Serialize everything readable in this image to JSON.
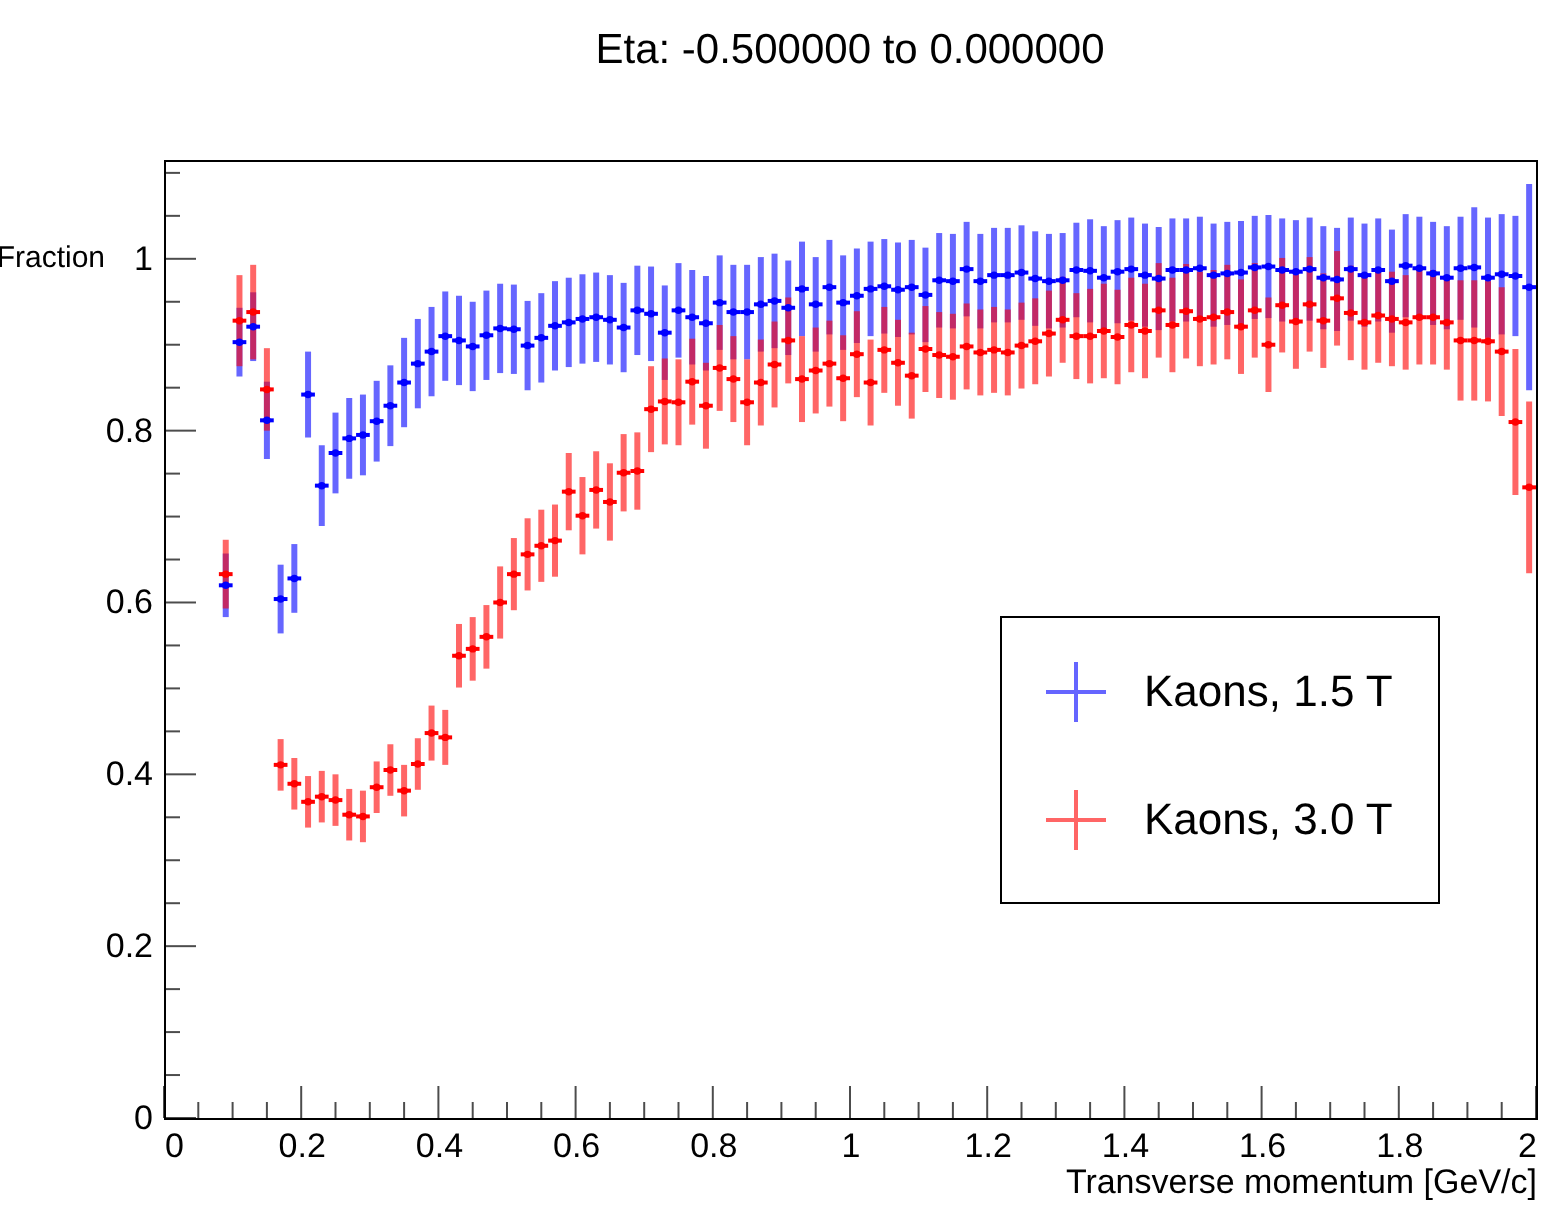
{
  "chart_data": {
    "type": "scatter",
    "title": "Eta: -0.500000 to 0.000000",
    "xlabel": "Transverse momentum [GeV/c]",
    "ylabel": "Fraction",
    "x": [
      0.09,
      0.11,
      0.13,
      0.15,
      0.17,
      0.19,
      0.21,
      0.23,
      0.25,
      0.27,
      0.29,
      0.31,
      0.33,
      0.35,
      0.37,
      0.39,
      0.41,
      0.43,
      0.45,
      0.47,
      0.49,
      0.51,
      0.53,
      0.55,
      0.57,
      0.59,
      0.61,
      0.63,
      0.65,
      0.67,
      0.69,
      0.71,
      0.73,
      0.75,
      0.77,
      0.79,
      0.81,
      0.83,
      0.85,
      0.87,
      0.89,
      0.91,
      0.93,
      0.95,
      0.97,
      0.99,
      1.01,
      1.03,
      1.05,
      1.07,
      1.09,
      1.11,
      1.13,
      1.15,
      1.17,
      1.19,
      1.21,
      1.23,
      1.25,
      1.27,
      1.29,
      1.31,
      1.33,
      1.35,
      1.37,
      1.39,
      1.41,
      1.43,
      1.45,
      1.47,
      1.49,
      1.51,
      1.53,
      1.55,
      1.57,
      1.59,
      1.61,
      1.63,
      1.65,
      1.67,
      1.69,
      1.71,
      1.73,
      1.75,
      1.77,
      1.79,
      1.81,
      1.83,
      1.85,
      1.87,
      1.89,
      1.91,
      1.93,
      1.95,
      1.97,
      1.99
    ],
    "series": [
      {
        "name": "Kaons, 1.5 T",
        "color": "#0000ff",
        "values": [
          0.62,
          0.903,
          0.921,
          0.812,
          0.604,
          0.628,
          0.842,
          0.736,
          0.774,
          0.791,
          0.795,
          0.811,
          0.829,
          0.856,
          0.878,
          0.892,
          0.91,
          0.905,
          0.898,
          0.911,
          0.919,
          0.918,
          0.899,
          0.908,
          0.922,
          0.926,
          0.93,
          0.932,
          0.929,
          0.92,
          0.94,
          0.936,
          0.914,
          0.94,
          0.932,
          0.925,
          0.949,
          0.938,
          0.938,
          0.947,
          0.951,
          0.943,
          0.965,
          0.947,
          0.967,
          0.949,
          0.957,
          0.965,
          0.968,
          0.964,
          0.967,
          0.958,
          0.975,
          0.974,
          0.988,
          0.974,
          0.981,
          0.981,
          0.984,
          0.977,
          0.974,
          0.975,
          0.987,
          0.986,
          0.978,
          0.985,
          0.988,
          0.981,
          0.977,
          0.987,
          0.987,
          0.989,
          0.981,
          0.983,
          0.984,
          0.99,
          0.991,
          0.987,
          0.985,
          0.988,
          0.978,
          0.976,
          0.988,
          0.981,
          0.987,
          0.974,
          0.992,
          0.989,
          0.983,
          0.978,
          0.989,
          0.99,
          0.978,
          0.982,
          0.98,
          0.967
        ],
        "errors": [
          0.037,
          0.04,
          0.04,
          0.045,
          0.04,
          0.04,
          0.05,
          0.047,
          0.047,
          0.047,
          0.047,
          0.047,
          0.047,
          0.052,
          0.052,
          0.052,
          0.052,
          0.052,
          0.052,
          0.052,
          0.052,
          0.052,
          0.052,
          0.052,
          0.052,
          0.052,
          0.052,
          0.052,
          0.052,
          0.052,
          0.052,
          0.055,
          0.055,
          0.055,
          0.055,
          0.055,
          0.055,
          0.055,
          0.055,
          0.055,
          0.055,
          0.055,
          0.055,
          0.055,
          0.055,
          0.055,
          0.055,
          0.055,
          0.055,
          0.055,
          0.055,
          0.055,
          0.055,
          0.055,
          0.055,
          0.055,
          0.055,
          0.055,
          0.055,
          0.055,
          0.055,
          0.055,
          0.055,
          0.06,
          0.06,
          0.06,
          0.06,
          0.06,
          0.06,
          0.06,
          0.06,
          0.06,
          0.06,
          0.06,
          0.06,
          0.06,
          0.06,
          0.06,
          0.06,
          0.06,
          0.06,
          0.06,
          0.06,
          0.06,
          0.06,
          0.06,
          0.06,
          0.06,
          0.06,
          0.06,
          0.06,
          0.07,
          0.07,
          0.07,
          0.07,
          0.12
        ],
        "xerrors": [
          0.01,
          0.01,
          0.01,
          0.01,
          0.01,
          0.01,
          0.01,
          0.01,
          0.01,
          0.01,
          0.01,
          0.01,
          0.01,
          0.01,
          0.01,
          0.01,
          0.01,
          0.01,
          0.01,
          0.01,
          0.01,
          0.01,
          0.01,
          0.01,
          0.01,
          0.01,
          0.01,
          0.01,
          0.01,
          0.01,
          0.01,
          0.01,
          0.01,
          0.01,
          0.01,
          0.01,
          0.01,
          0.01,
          0.01,
          0.01,
          0.01,
          0.01,
          0.01,
          0.01,
          0.01,
          0.01,
          0.01,
          0.01,
          0.01,
          0.01,
          0.01,
          0.01,
          0.01,
          0.01,
          0.01,
          0.01,
          0.01,
          0.01,
          0.01,
          0.01,
          0.01,
          0.01,
          0.01,
          0.01,
          0.01,
          0.01,
          0.01,
          0.01,
          0.01,
          0.01,
          0.01,
          0.01,
          0.01,
          0.01,
          0.01,
          0.01,
          0.01,
          0.01,
          0.01,
          0.01,
          0.01,
          0.01,
          0.01,
          0.01,
          0.01,
          0.01,
          0.01,
          0.01,
          0.01,
          0.01,
          0.01,
          0.01,
          0.01,
          0.01,
          0.01,
          0.01
        ]
      },
      {
        "name": "Kaons, 3.0 T",
        "color": "#ff0000",
        "values": [
          0.633,
          0.928,
          0.938,
          0.848,
          0.411,
          0.389,
          0.368,
          0.374,
          0.37,
          0.353,
          0.351,
          0.385,
          0.405,
          0.381,
          0.412,
          0.448,
          0.443,
          0.538,
          0.546,
          0.56,
          0.6,
          0.633,
          0.656,
          0.666,
          0.672,
          0.729,
          0.701,
          0.731,
          0.717,
          0.751,
          0.753,
          0.825,
          0.834,
          0.833,
          0.857,
          0.829,
          0.873,
          0.86,
          0.833,
          0.856,
          0.877,
          0.905,
          0.86,
          0.87,
          0.878,
          0.861,
          0.889,
          0.856,
          0.894,
          0.879,
          0.864,
          0.895,
          0.888,
          0.886,
          0.898,
          0.891,
          0.894,
          0.891,
          0.899,
          0.904,
          0.913,
          0.929,
          0.91,
          0.91,
          0.916,
          0.909,
          0.923,
          0.916,
          0.94,
          0.923,
          0.939,
          0.93,
          0.932,
          0.938,
          0.921,
          0.94,
          0.9,
          0.946,
          0.927,
          0.947,
          0.928,
          0.954,
          0.937,
          0.926,
          0.934,
          0.93,
          0.926,
          0.932,
          0.932,
          0.926,
          0.905,
          0.905,
          0.904,
          0.892,
          0.81,
          0.734
        ],
        "errors": [
          0.04,
          0.053,
          0.055,
          0.048,
          0.03,
          0.03,
          0.03,
          0.03,
          0.03,
          0.03,
          0.03,
          0.03,
          0.03,
          0.03,
          0.03,
          0.032,
          0.032,
          0.037,
          0.037,
          0.037,
          0.042,
          0.042,
          0.042,
          0.042,
          0.042,
          0.045,
          0.045,
          0.045,
          0.045,
          0.045,
          0.045,
          0.05,
          0.05,
          0.05,
          0.05,
          0.05,
          0.05,
          0.05,
          0.05,
          0.05,
          0.05,
          0.05,
          0.05,
          0.05,
          0.05,
          0.05,
          0.05,
          0.05,
          0.05,
          0.05,
          0.05,
          0.05,
          0.05,
          0.05,
          0.05,
          0.05,
          0.05,
          0.05,
          0.05,
          0.05,
          0.05,
          0.05,
          0.05,
          0.055,
          0.055,
          0.055,
          0.055,
          0.055,
          0.055,
          0.055,
          0.055,
          0.055,
          0.055,
          0.055,
          0.055,
          0.055,
          0.055,
          0.055,
          0.055,
          0.055,
          0.055,
          0.055,
          0.055,
          0.055,
          0.055,
          0.055,
          0.055,
          0.055,
          0.055,
          0.055,
          0.07,
          0.07,
          0.07,
          0.075,
          0.085,
          0.1
        ],
        "xerrors": [
          0.01,
          0.01,
          0.01,
          0.01,
          0.01,
          0.01,
          0.01,
          0.01,
          0.01,
          0.01,
          0.01,
          0.01,
          0.01,
          0.01,
          0.01,
          0.01,
          0.01,
          0.01,
          0.01,
          0.01,
          0.01,
          0.01,
          0.01,
          0.01,
          0.01,
          0.01,
          0.01,
          0.01,
          0.01,
          0.01,
          0.01,
          0.01,
          0.01,
          0.01,
          0.01,
          0.01,
          0.01,
          0.01,
          0.01,
          0.01,
          0.01,
          0.01,
          0.01,
          0.01,
          0.01,
          0.01,
          0.01,
          0.01,
          0.01,
          0.01,
          0.01,
          0.01,
          0.01,
          0.01,
          0.01,
          0.01,
          0.01,
          0.01,
          0.01,
          0.01,
          0.01,
          0.01,
          0.01,
          0.01,
          0.01,
          0.01,
          0.01,
          0.01,
          0.01,
          0.01,
          0.01,
          0.01,
          0.01,
          0.01,
          0.01,
          0.01,
          0.01,
          0.01,
          0.01,
          0.01,
          0.01,
          0.01,
          0.01,
          0.01,
          0.01,
          0.01,
          0.01,
          0.01,
          0.01,
          0.01,
          0.01,
          0.01,
          0.01,
          0.01,
          0.01,
          0.01
        ]
      }
    ],
    "xlim": [
      0,
      2
    ],
    "xticks": [
      0,
      {
        "value": 0.05,
        "label": null
      },
      {
        "value": 0.1,
        "label": null
      },
      {
        "value": 0.15,
        "label": null
      },
      0.2,
      {
        "value": 0.25,
        "label": null
      },
      {
        "value": 0.3,
        "label": null
      },
      {
        "value": 0.35,
        "label": null
      },
      0.4,
      {
        "value": 0.45,
        "label": null
      },
      {
        "value": 0.5,
        "label": null
      },
      {
        "value": 0.55,
        "label": null
      },
      0.6,
      {
        "value": 0.65,
        "label": null
      },
      {
        "value": 0.7,
        "label": null
      },
      {
        "value": 0.75,
        "label": null
      },
      0.8,
      {
        "value": 0.85,
        "label": null
      },
      {
        "value": 0.9,
        "label": null
      },
      {
        "value": 0.95,
        "label": null
      },
      1,
      {
        "value": 1.05,
        "label": null
      },
      {
        "value": 1.1,
        "label": null
      },
      {
        "value": 1.15,
        "label": null
      },
      1.2,
      {
        "value": 1.25,
        "label": null
      },
      {
        "value": 1.3,
        "label": null
      },
      {
        "value": 1.35,
        "label": null
      },
      1.4,
      {
        "value": 1.45,
        "label": null
      },
      {
        "value": 1.5,
        "label": null
      },
      {
        "value": 1.55,
        "label": null
      },
      1.6,
      {
        "value": 1.65,
        "label": null
      },
      {
        "value": 1.7,
        "label": null
      },
      {
        "value": 1.75,
        "label": null
      },
      1.8,
      {
        "value": 1.85,
        "label": null
      },
      {
        "value": 1.9,
        "label": null
      },
      {
        "value": 1.95,
        "label": null
      },
      2
    ],
    "ylim": [
      0,
      1.115
    ],
    "yticks": [
      0,
      {
        "value": 0.05,
        "label": null
      },
      {
        "value": 0.1,
        "label": null
      },
      {
        "value": 0.15,
        "label": null
      },
      0.2,
      {
        "value": 0.25,
        "label": null
      },
      {
        "value": 0.3,
        "label": null
      },
      {
        "value": 0.35,
        "label": null
      },
      0.4,
      {
        "value": 0.45,
        "label": null
      },
      {
        "value": 0.5,
        "label": null
      },
      {
        "value": 0.55,
        "label": null
      },
      0.6,
      {
        "value": 0.65,
        "label": null
      },
      {
        "value": 0.7,
        "label": null
      },
      {
        "value": 0.75,
        "label": null
      },
      0.8,
      {
        "value": 0.85,
        "label": null
      },
      {
        "value": 0.9,
        "label": null
      },
      {
        "value": 0.95,
        "label": null
      },
      1,
      {
        "value": 1.05,
        "label": null
      },
      {
        "value": 1.1,
        "label": null
      }
    ],
    "legend": "right"
  }
}
